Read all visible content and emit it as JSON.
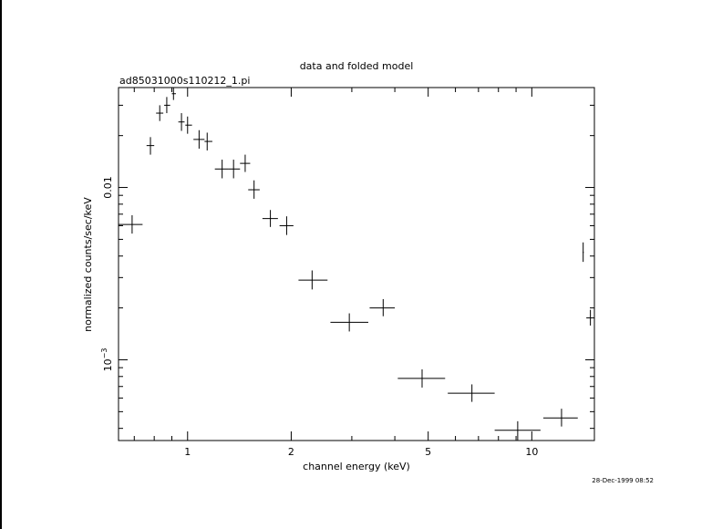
{
  "title": "data and folded model",
  "subtitle": "ad85031000s110212_1.pi",
  "timestamp": "28-Dec-1999 08:52",
  "chart_data": {
    "type": "scatter",
    "title": "data and folded model",
    "subtitle": "ad85031000s110212_1.pi",
    "xlabel": "channel energy (keV)",
    "ylabel": "normalized counts/sec/keV",
    "x_scale": "log",
    "y_scale": "log",
    "xlim": [
      0.63,
      15.2
    ],
    "ylim": [
      0.00034,
      0.038
    ],
    "x_ticks": [
      {
        "value": 1,
        "label": "1"
      },
      {
        "value": 2,
        "label": "2"
      },
      {
        "value": 5,
        "label": "5"
      },
      {
        "value": 10,
        "label": "10"
      }
    ],
    "y_ticks": [
      {
        "value": 0.001,
        "label": "10",
        "exponent": "−3"
      },
      {
        "value": 0.01,
        "label": "0.01"
      }
    ],
    "grid": false,
    "points": [
      {
        "x": 0.69,
        "xlo": 0.63,
        "xhi": 0.74,
        "y": 0.0061,
        "ylo": 0.0054,
        "yhi": 0.0069
      },
      {
        "x": 0.78,
        "xlo": 0.76,
        "xhi": 0.8,
        "y": 0.0175,
        "ylo": 0.0155,
        "yhi": 0.0196
      },
      {
        "x": 0.83,
        "xlo": 0.81,
        "xhi": 0.85,
        "y": 0.027,
        "ylo": 0.0243,
        "yhi": 0.03
      },
      {
        "x": 0.87,
        "xlo": 0.855,
        "xhi": 0.89,
        "y": 0.03,
        "ylo": 0.027,
        "yhi": 0.0335
      },
      {
        "x": 0.91,
        "xlo": 0.9,
        "xhi": 0.925,
        "y": 0.035,
        "ylo": 0.0322,
        "yhi": 0.038
      },
      {
        "x": 0.96,
        "xlo": 0.94,
        "xhi": 0.98,
        "y": 0.024,
        "ylo": 0.0213,
        "yhi": 0.027
      },
      {
        "x": 1.0,
        "xlo": 0.985,
        "xhi": 1.03,
        "y": 0.023,
        "ylo": 0.0205,
        "yhi": 0.0258
      },
      {
        "x": 1.08,
        "xlo": 1.04,
        "xhi": 1.12,
        "y": 0.019,
        "ylo": 0.0168,
        "yhi": 0.0215
      },
      {
        "x": 1.14,
        "xlo": 1.12,
        "xhi": 1.18,
        "y": 0.0185,
        "ylo": 0.0164,
        "yhi": 0.0208
      },
      {
        "x": 1.26,
        "xlo": 1.2,
        "xhi": 1.31,
        "y": 0.0128,
        "ylo": 0.0113,
        "yhi": 0.0145
      },
      {
        "x": 1.36,
        "xlo": 1.31,
        "xhi": 1.42,
        "y": 0.0128,
        "ylo": 0.0113,
        "yhi": 0.0145
      },
      {
        "x": 1.47,
        "xlo": 1.42,
        "xhi": 1.52,
        "y": 0.0138,
        "ylo": 0.0123,
        "yhi": 0.0155
      },
      {
        "x": 1.56,
        "xlo": 1.5,
        "xhi": 1.62,
        "y": 0.0097,
        "ylo": 0.0086,
        "yhi": 0.011
      },
      {
        "x": 1.74,
        "xlo": 1.65,
        "xhi": 1.83,
        "y": 0.0066,
        "ylo": 0.0059,
        "yhi": 0.0074
      },
      {
        "x": 1.94,
        "xlo": 1.85,
        "xhi": 2.03,
        "y": 0.006,
        "ylo": 0.0053,
        "yhi": 0.0068
      },
      {
        "x": 2.3,
        "xlo": 2.1,
        "xhi": 2.55,
        "y": 0.0029,
        "ylo": 0.00256,
        "yhi": 0.0033
      },
      {
        "x": 2.95,
        "xlo": 2.6,
        "xhi": 3.35,
        "y": 0.00165,
        "ylo": 0.00146,
        "yhi": 0.00186
      },
      {
        "x": 3.7,
        "xlo": 3.38,
        "xhi": 4.0,
        "y": 0.002,
        "ylo": 0.00179,
        "yhi": 0.00225
      },
      {
        "x": 4.8,
        "xlo": 4.08,
        "xhi": 5.6,
        "y": 0.00078,
        "ylo": 0.00069,
        "yhi": 0.00088
      },
      {
        "x": 6.7,
        "xlo": 5.7,
        "xhi": 7.8,
        "y": 0.00064,
        "ylo": 0.00057,
        "yhi": 0.00072
      },
      {
        "x": 9.1,
        "xlo": 7.8,
        "xhi": 10.6,
        "y": 0.00039,
        "ylo": 0.00034,
        "yhi": 0.00044
      },
      {
        "x": 12.2,
        "xlo": 10.8,
        "xhi": 13.6,
        "y": 0.00046,
        "ylo": 0.00041,
        "yhi": 0.00052
      },
      {
        "x": 14.1,
        "xlo": 14.05,
        "xhi": 14.15,
        "y": 0.0042,
        "ylo": 0.0037,
        "yhi": 0.0048
      },
      {
        "x": 14.8,
        "xlo": 14.4,
        "xhi": 15.2,
        "y": 0.00175,
        "ylo": 0.00158,
        "yhi": 0.00195
      }
    ]
  }
}
